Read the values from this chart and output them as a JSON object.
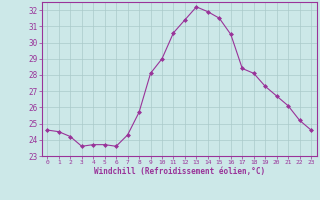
{
  "hours": [
    0,
    1,
    2,
    3,
    4,
    5,
    6,
    7,
    8,
    9,
    10,
    11,
    12,
    13,
    14,
    15,
    16,
    17,
    18,
    19,
    20,
    21,
    22,
    23
  ],
  "values": [
    24.6,
    24.5,
    24.2,
    23.6,
    23.7,
    23.7,
    23.6,
    24.3,
    25.7,
    28.1,
    29.0,
    30.6,
    31.4,
    32.2,
    31.9,
    31.5,
    30.5,
    28.4,
    28.1,
    27.3,
    26.7,
    26.1,
    25.2,
    24.6
  ],
  "line_color": "#993399",
  "marker": "D",
  "marker_size": 2.0,
  "bg_color": "#cce8e8",
  "grid_color": "#aacaca",
  "tick_color": "#993399",
  "label_color": "#993399",
  "xlabel": "Windchill (Refroidissement éolien,°C)",
  "ylim": [
    23,
    32.5
  ],
  "yticks": [
    23,
    24,
    25,
    26,
    27,
    28,
    29,
    30,
    31,
    32
  ],
  "xlim": [
    -0.5,
    23.5
  ],
  "xticks": [
    0,
    1,
    2,
    3,
    4,
    5,
    6,
    7,
    8,
    9,
    10,
    11,
    12,
    13,
    14,
    15,
    16,
    17,
    18,
    19,
    20,
    21,
    22,
    23
  ]
}
